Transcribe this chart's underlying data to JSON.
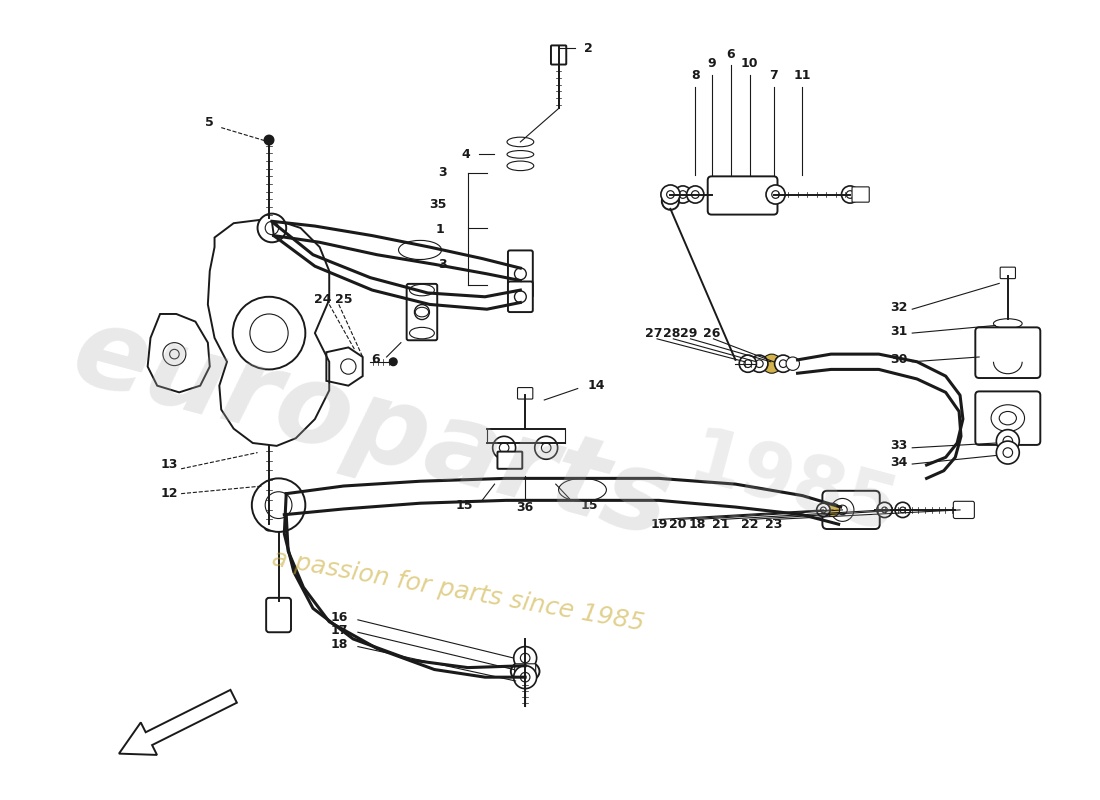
{
  "bg_color": "#ffffff",
  "line_color": "#1a1a1a",
  "label_color": "#1a1a1a"
}
